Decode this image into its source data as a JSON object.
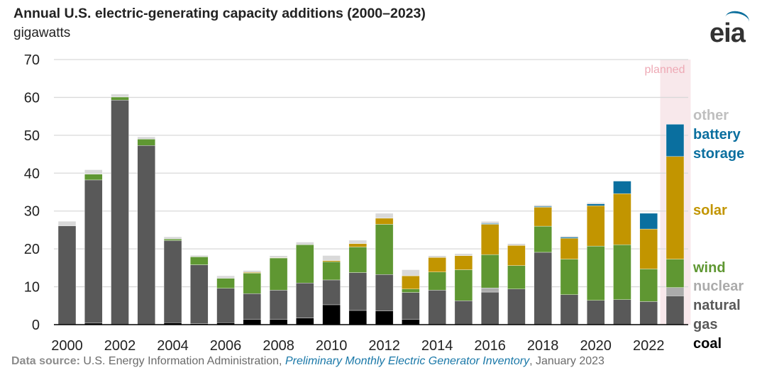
{
  "chart_data": {
    "type": "bar",
    "stacked": true,
    "title": "Annual U.S. electric-generating capacity additions (2000–2023)",
    "ylabel": "gigawatts",
    "ylim": [
      0,
      70
    ],
    "yticks": [
      0,
      10,
      20,
      30,
      40,
      50,
      60,
      70
    ],
    "xtick_labels": [
      "2000",
      "2002",
      "2004",
      "2006",
      "2008",
      "2010",
      "2012",
      "2014",
      "2016",
      "2018",
      "2020",
      "2022"
    ],
    "grid": true,
    "legend": "right",
    "annotation": "planned",
    "planned_categories": [
      "2023"
    ],
    "categories": [
      "2000",
      "2001",
      "2002",
      "2003",
      "2004",
      "2005",
      "2006",
      "2007",
      "2008",
      "2009",
      "2010",
      "2011",
      "2012",
      "2013",
      "2014",
      "2015",
      "2016",
      "2017",
      "2018",
      "2019",
      "2020",
      "2021",
      "2022",
      "2023"
    ],
    "series": [
      {
        "name": "coal",
        "color": "#000000",
        "values": [
          0,
          0.4,
          0,
          0,
          0.5,
          0.25,
          0.5,
          1.4,
          1.4,
          1.75,
          5.25,
          3.75,
          3.6,
          1.4,
          0,
          0,
          0,
          0,
          0,
          0,
          0,
          0,
          0,
          0
        ]
      },
      {
        "name": "natural gas",
        "color": "#595959",
        "values": [
          26.1,
          37.8,
          59.3,
          47.3,
          21.7,
          15.55,
          9.1,
          6.8,
          7.7,
          9.25,
          6.55,
          10.0,
          9.65,
          7.1,
          9.1,
          6.3,
          8.6,
          9.4,
          19.1,
          7.9,
          6.4,
          6.6,
          6.1,
          7.6
        ]
      },
      {
        "name": "nuclear",
        "color": "#ababab",
        "values": [
          0,
          0,
          0,
          0,
          0,
          0,
          0,
          0,
          0,
          0,
          0,
          0,
          0,
          0,
          0,
          0,
          1.1,
          0,
          0,
          0,
          0,
          0,
          0,
          2.2
        ]
      },
      {
        "name": "wind",
        "color": "#5f9732",
        "values": [
          0,
          1.55,
          0.8,
          1.7,
          0.4,
          2.1,
          2.65,
          5.4,
          8.5,
          10.1,
          4.8,
          6.75,
          13.25,
          0.9,
          4.8,
          8.2,
          8.8,
          6.2,
          6.9,
          9.4,
          14.35,
          14.5,
          8.6,
          7.5
        ]
      },
      {
        "name": "solar",
        "color": "#c29500",
        "values": [
          0,
          0,
          0,
          0,
          0,
          0,
          0,
          0.2,
          0.1,
          0,
          0.3,
          0.9,
          1.6,
          3.5,
          3.85,
          3.7,
          8.0,
          5.3,
          5.0,
          5.5,
          10.65,
          13.5,
          10.55,
          27.1
        ]
      },
      {
        "name": "battery storage",
        "color": "#0a6f9f",
        "values": [
          0,
          0,
          0,
          0,
          0,
          0,
          0,
          0,
          0,
          0,
          0,
          0,
          0,
          0,
          0,
          0,
          0.2,
          0,
          0.25,
          0.3,
          0.5,
          3.3,
          4.15,
          8.5
        ]
      },
      {
        "name": "other",
        "color": "#d9d9d9",
        "values": [
          1.2,
          1.15,
          0.8,
          0.6,
          0.6,
          0.4,
          0.65,
          0.5,
          0.5,
          0.7,
          1.35,
          0.9,
          1.3,
          1.6,
          0.45,
          0.55,
          0.55,
          0.5,
          0.35,
          0.3,
          0.3,
          0,
          0,
          0
        ]
      }
    ]
  },
  "legend_labels": {
    "other": "other",
    "battery_1": "battery",
    "battery_2": "storage",
    "solar": "solar",
    "wind": "wind",
    "nuclear": "nuclear",
    "gas_1": "natural",
    "gas_2": "gas",
    "coal": "coal"
  },
  "logo": "eia",
  "footer": {
    "label": "Data source:",
    "source": " U.S. Energy Information Administration, ",
    "report": "Preliminary Monthly Electric Generator Inventory",
    "date": ", January 2023"
  }
}
